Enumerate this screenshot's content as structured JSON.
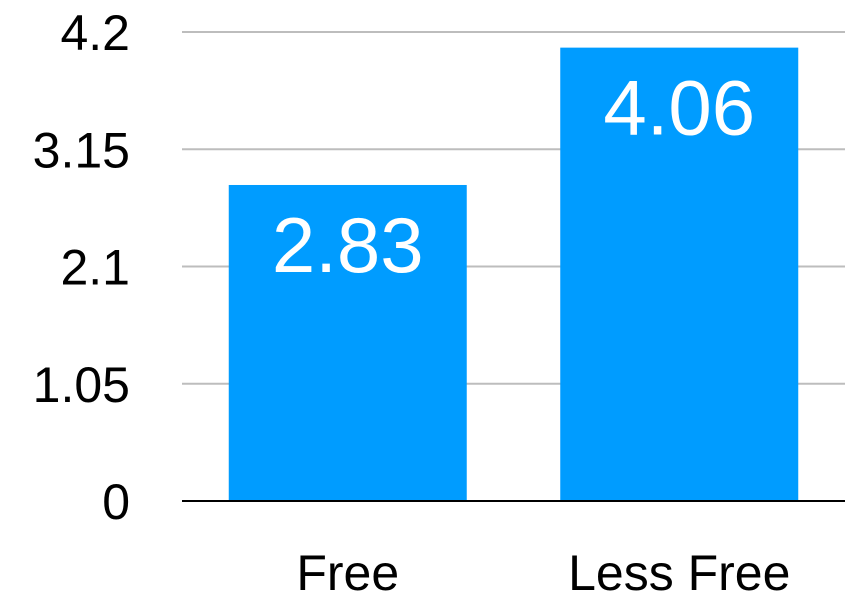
{
  "chart_data": {
    "type": "bar",
    "categories": [
      "Free",
      "Less Free"
    ],
    "values": [
      2.83,
      4.06
    ],
    "data_labels": [
      "2.83",
      "4.06"
    ],
    "title": "",
    "xlabel": "",
    "ylabel": "",
    "ylim": [
      0,
      4.2
    ],
    "yticks": [
      0,
      1.05,
      2.1,
      3.15,
      4.2
    ],
    "ytick_labels": [
      "0",
      "1.05",
      "2.1",
      "3.15",
      "4.2"
    ],
    "grid": true,
    "legend": "none",
    "colors": {
      "bar": "#009CFF",
      "grid": "#BDBDBD",
      "axis": "#000000",
      "data_label": "#FFFFFF"
    }
  }
}
